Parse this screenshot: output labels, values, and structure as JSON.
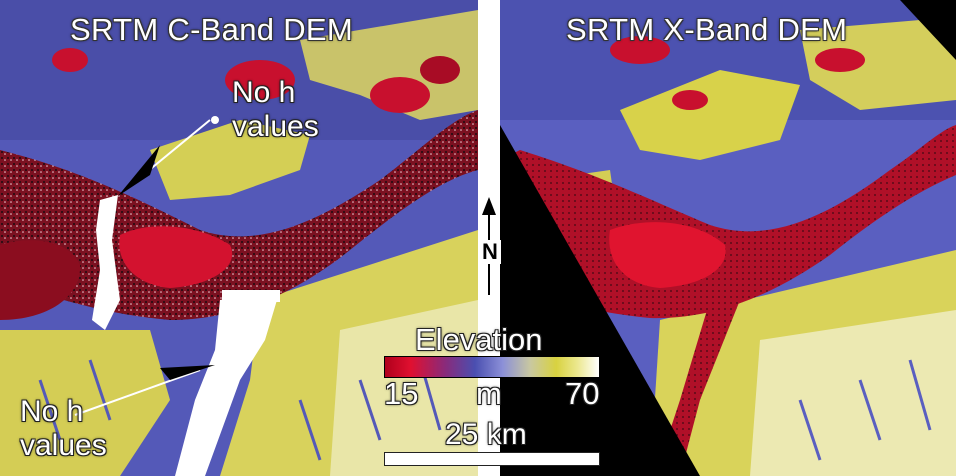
{
  "left_panel": {
    "title": "SRTM C-Band DEM"
  },
  "right_panel": {
    "title": "SRTM X-Band DEM"
  },
  "annotations": {
    "upper": {
      "line1": "No h",
      "line2": "values"
    },
    "lower": {
      "line1": "No h",
      "line2": "values"
    }
  },
  "north_arrow": {
    "label": "N"
  },
  "legend": {
    "title": "Elevation",
    "min": "15",
    "unit": "m",
    "max": "70",
    "colors": [
      "#b0001c",
      "#e01030",
      "#8a2a7a",
      "#4a4fb0",
      "#8c90d8",
      "#c9c8a0",
      "#d8d240",
      "#ece890",
      "#ffffff"
    ]
  },
  "scale_bar": {
    "label": "25 km"
  },
  "colors": {
    "lowland_red": "#c8102e",
    "river_dark": "#8b0d1f",
    "floodplain_blue": "#4f55b5",
    "upland_yellow": "#d9d24a",
    "upland_light": "#f2efc0",
    "void_white": "#ffffff",
    "nodata_black": "#000000"
  }
}
